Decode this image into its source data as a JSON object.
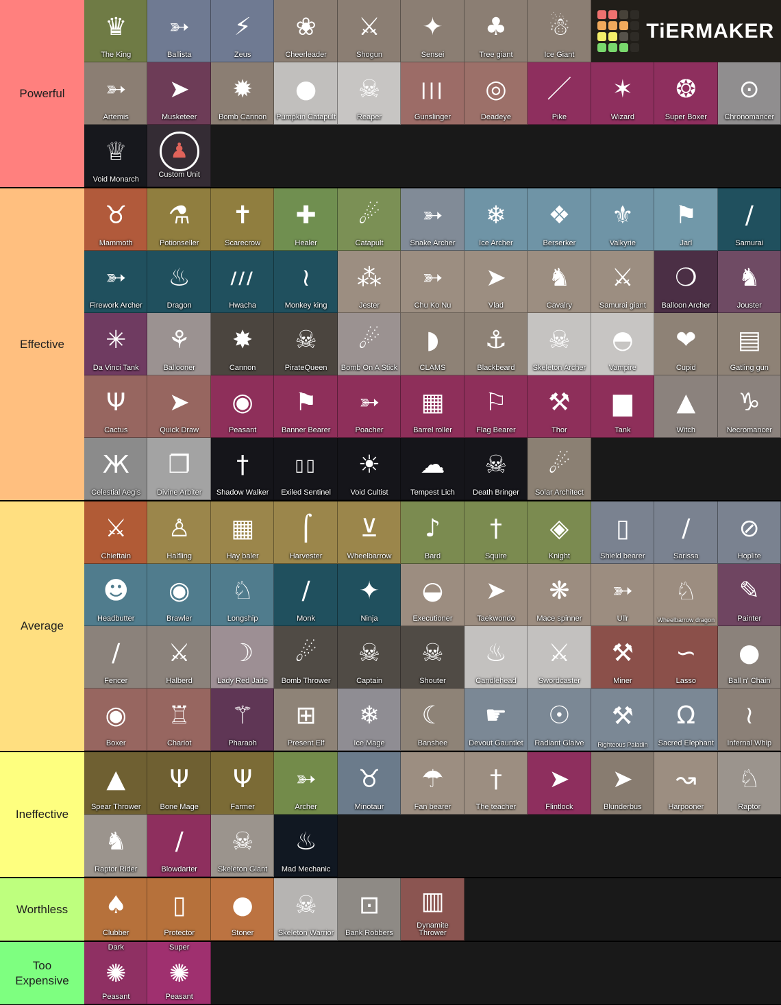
{
  "board": {
    "bg": "#131313",
    "content_bg": "#191919",
    "divider": "#000000",
    "label_text_color": "#1f1f1f"
  },
  "logo": {
    "text": "TiERMAKER",
    "bg": "#211e19",
    "grid": [
      "#ef716f",
      "#ef716f",
      "#474239",
      "#2e2b26",
      "#f0a95c",
      "#f0a95c",
      "#f0a95c",
      "#2e2b26",
      "#f3ee6a",
      "#f3ee6a",
      "#56524b",
      "#2e2b26",
      "#79d86d",
      "#79d86d",
      "#79d86d",
      "#2e2b26"
    ]
  },
  "tiers": [
    {
      "label": "Powerful",
      "color": "#ff807e",
      "rows": 3,
      "tiles": [
        {
          "l": "The King",
          "c": "#6f7b45",
          "g": "♛",
          "i": "crown-icon"
        },
        {
          "l": "Ballista",
          "c": "#6f7a92",
          "g": "➳",
          "i": "ballista-icon"
        },
        {
          "l": "Zeus",
          "c": "#6f7a92",
          "g": "⚡",
          "i": "lightning-icon"
        },
        {
          "l": "Cheerleader",
          "c": "#8b7e73",
          "g": "❀",
          "i": "pompom-icon"
        },
        {
          "l": "Shogun",
          "c": "#8b7e73",
          "g": "⚔",
          "i": "crossed-swords-icon"
        },
        {
          "l": "Sensei",
          "c": "#8b7e73",
          "g": "✦",
          "i": "shuriken-icon"
        },
        {
          "l": "Tree giant",
          "c": "#8b7e73",
          "g": "♣",
          "i": "tree-icon"
        },
        {
          "l": "Ice Giant",
          "c": "#8b7e73",
          "g": "☃",
          "i": "ice-giant-icon"
        },
        {
          "l": "Artemis",
          "c": "#8b7e73",
          "g": "➳",
          "i": "bow-arrow-icon"
        },
        {
          "l": "Musketeer",
          "c": "#6d3c57",
          "g": "➤",
          "i": "musket-icon"
        },
        {
          "l": "Bomb Cannon",
          "c": "#8b7e73",
          "g": "✹",
          "i": "bomb-blast-icon"
        },
        {
          "l": "Pumpkin Catapult",
          "c": "#c1bfbd",
          "g": "●",
          "i": "pumpkin-icon"
        },
        {
          "l": "Reaper",
          "c": "#c7c5c3",
          "g": "☠",
          "i": "reaper-hood-icon"
        },
        {
          "l": "Gunslinger",
          "c": "#9c6c67",
          "g": "|||",
          "i": "falling-bullets-icon"
        },
        {
          "l": "Deadeye",
          "c": "#9c7069",
          "g": "◎",
          "i": "target-icon"
        },
        {
          "l": "Pike",
          "c": "#8e2f5e",
          "g": "／",
          "i": "pike-icon"
        },
        {
          "l": "Wizard",
          "c": "#8e2f5e",
          "g": "✶",
          "i": "wizard-hat-icon"
        },
        {
          "l": "Super Boxer",
          "c": "#8e2f5e",
          "g": "❂",
          "i": "boxing-gloves-icon"
        },
        {
          "l": "Chronomancer",
          "c": "#908e8f",
          "g": "⊙",
          "i": "chrono-dial-icon"
        },
        {
          "l": "Void Monarch",
          "c": "#17181d",
          "g": "♕",
          "i": "void-crown-icon"
        },
        {
          "l": "Custom Unit",
          "c": "#342c34",
          "g": "♟",
          "gc": "#e0635a",
          "ring": true,
          "i": "custom-figure-icon"
        }
      ]
    },
    {
      "label": "Effective",
      "color": "#ffbf7f",
      "rows": 5,
      "tiles": [
        {
          "l": "Mammoth",
          "c": "#b15a3b",
          "g": "♉",
          "i": "mammoth-icon"
        },
        {
          "l": "Potionseller",
          "c": "#907e3f",
          "g": "⚗",
          "i": "potion-flask-icon"
        },
        {
          "l": "Scarecrow",
          "c": "#907e3f",
          "g": "✝",
          "i": "scarecrow-icon"
        },
        {
          "l": "Healer",
          "c": "#708f50",
          "g": "✚",
          "i": "healer-mitre-icon"
        },
        {
          "l": "Catapult",
          "c": "#7b9055",
          "g": "☄",
          "i": "catapult-icon"
        },
        {
          "l": "Snake Archer",
          "c": "#818b97",
          "g": "➳",
          "i": "snake-bow-icon"
        },
        {
          "l": "Ice Archer",
          "c": "#6f94a6",
          "g": "❄",
          "i": "ice-bow-icon"
        },
        {
          "l": "Berserker",
          "c": "#6f94a6",
          "g": "❖",
          "i": "berserker-face-icon"
        },
        {
          "l": "Valkyrie",
          "c": "#6f94a6",
          "g": "⚜",
          "i": "valkyrie-wings-icon"
        },
        {
          "l": "Jarl",
          "c": "#7198a9",
          "g": "⚑",
          "i": "jarl-axe-icon"
        },
        {
          "l": "Samurai",
          "c": "#20505e",
          "g": "∕",
          "i": "katana-icon"
        },
        {
          "l": "Firework Archer",
          "c": "#20505e",
          "g": "➳",
          "i": "firework-bow-icon"
        },
        {
          "l": "Dragon",
          "c": "#20505e",
          "g": "♨",
          "i": "flame-icon"
        },
        {
          "l": "Hwacha",
          "c": "#20505e",
          "g": "///",
          "i": "hwacha-arrows-icon"
        },
        {
          "l": "Monkey king",
          "c": "#20505e",
          "g": "≀",
          "i": "monkey-staff-icon"
        },
        {
          "l": "Jester",
          "c": "#9c8e81",
          "g": "⁂",
          "i": "jester-hat-icon"
        },
        {
          "l": "Chu Ko Nu",
          "c": "#9c8e81",
          "g": "➳",
          "i": "chu-ko-nu-icon"
        },
        {
          "l": "Vlad",
          "c": "#9c8e81",
          "g": "➤",
          "i": "stake-icon"
        },
        {
          "l": "Cavalry",
          "c": "#9c8e81",
          "g": "♞",
          "i": "cavalry-horse-icon"
        },
        {
          "l": "Samurai giant",
          "c": "#9c8e81",
          "g": "⚔",
          "i": "samurai-giant-icon"
        },
        {
          "l": "Balloon Archer",
          "c": "#4b2f45",
          "g": "❍",
          "i": "balloon-bow-icon"
        },
        {
          "l": "Jouster",
          "c": "#6f4b64",
          "g": "♞",
          "i": "jouster-horse-icon"
        },
        {
          "l": "Da Vinci Tank",
          "c": "#6f3b61",
          "g": "✳",
          "i": "davinci-wheel-icon"
        },
        {
          "l": "Ballooner",
          "c": "#9b9291",
          "g": "⚘",
          "i": "balloon-bouquet-icon"
        },
        {
          "l": "Cannon",
          "c": "#4b453f",
          "g": "✸",
          "i": "cannon-blast-icon"
        },
        {
          "l": "PirateQueen",
          "c": "#4b453f",
          "g": "☠",
          "i": "pirate-queen-icon"
        },
        {
          "l": "Bomb On A Stick",
          "c": "#9b9291",
          "g": "☄",
          "i": "bomb-stick-icon"
        },
        {
          "l": "CLAMS",
          "c": "#8e8276",
          "g": "◗",
          "i": "clam-shell-icon"
        },
        {
          "l": "Blackbeard",
          "c": "#8e8276",
          "g": "⚓",
          "i": "anchor-icon"
        },
        {
          "l": "Skeleton Archer",
          "c": "#c5c3c1",
          "g": "☠",
          "i": "skeleton-bow-icon"
        },
        {
          "l": "Vampire",
          "c": "#c7c5c3",
          "g": "◓",
          "i": "vampire-mask-icon"
        },
        {
          "l": "Cupid",
          "c": "#8e8276",
          "g": "❤",
          "i": "cupid-bow-icon"
        },
        {
          "l": "Gatling gun",
          "c": "#8e8276",
          "g": "▤",
          "i": "gatling-barrels-icon"
        },
        {
          "l": "Cactus",
          "c": "#976660",
          "g": "Ψ",
          "i": "cactus-icon"
        },
        {
          "l": "Quick Draw",
          "c": "#976660",
          "g": "➤",
          "i": "quick-draw-gun-icon"
        },
        {
          "l": "Peasant",
          "c": "#8e2f5a",
          "g": "◉",
          "i": "peasant-hood-icon"
        },
        {
          "l": "Banner Bearer",
          "c": "#8e2f5a",
          "g": "⚑",
          "i": "banner-pole-icon"
        },
        {
          "l": "Poacher",
          "c": "#8e2f5a",
          "g": "➳",
          "i": "poacher-bow-icon"
        },
        {
          "l": "Barrel roller",
          "c": "#8e2f5a",
          "g": "▦",
          "i": "barrel-icon"
        },
        {
          "l": "Flag Bearer",
          "c": "#8e2f5a",
          "g": "⚐",
          "i": "flag-icon"
        },
        {
          "l": "Thor",
          "c": "#8e2f5a",
          "g": "⚒",
          "i": "thor-hammer-icon"
        },
        {
          "l": "Tank",
          "c": "#8e2f5a",
          "g": "▆",
          "i": "tank-icon"
        },
        {
          "l": "Witch",
          "c": "#8b827d",
          "g": "▲",
          "i": "witch-hat-icon"
        },
        {
          "l": "Necromancer",
          "c": "#8b827d",
          "g": "♑",
          "i": "ram-skull-icon"
        },
        {
          "l": "Celestial Aegis",
          "c": "#8b8b8b",
          "g": "Ж",
          "i": "butterfly-icon"
        },
        {
          "l": "Divine Arbiter",
          "c": "#a3a3a3",
          "g": "❐",
          "i": "tome-icon"
        },
        {
          "l": "Shadow Walker",
          "c": "#15151a",
          "g": "†",
          "i": "shadow-dagger-icon"
        },
        {
          "l": "Exiled Sentinel",
          "c": "#15151a",
          "g": "▯▯",
          "i": "sentinel-feet-icon"
        },
        {
          "l": "Void Cultist",
          "c": "#15151a",
          "g": "☀",
          "i": "void-staff-icon"
        },
        {
          "l": "Tempest Lich",
          "c": "#15151a",
          "g": "☁",
          "i": "storm-cloud-icon"
        },
        {
          "l": "Death Bringer",
          "c": "#15151a",
          "g": "☠",
          "i": "horned-skull-icon"
        },
        {
          "l": "Solar Architect",
          "c": "#8b8073",
          "g": "☄",
          "i": "solar-hammer-icon"
        }
      ]
    },
    {
      "label": "Average",
      "color": "#ffdf80",
      "rows": 4,
      "tiles": [
        {
          "l": "Chieftain",
          "c": "#b15b36",
          "g": "⚔",
          "i": "crossed-axes-icon"
        },
        {
          "l": "Halfling",
          "c": "#9b864b",
          "g": "♙",
          "i": "halfling-hat-icon"
        },
        {
          "l": "Hay baler",
          "c": "#9b864b",
          "g": "▦",
          "i": "hay-bale-icon"
        },
        {
          "l": "Harvester",
          "c": "#9b864b",
          "g": "⌠",
          "i": "scythe-icon"
        },
        {
          "l": "Wheelbarrow",
          "c": "#9b864b",
          "g": "⊻",
          "i": "wheelbarrow-icon"
        },
        {
          "l": "Bard",
          "c": "#7b8b50",
          "g": "♪",
          "i": "bard-lute-icon"
        },
        {
          "l": "Squire",
          "c": "#7b8b50",
          "g": "†",
          "i": "squire-sword-icon"
        },
        {
          "l": "Knight",
          "c": "#7b8b50",
          "g": "◈",
          "i": "knight-shield-icon"
        },
        {
          "l": "Shield bearer",
          "c": "#7a8290",
          "g": "▯",
          "i": "tower-shield-icon"
        },
        {
          "l": "Sarissa",
          "c": "#7a8290",
          "g": "∕",
          "i": "sarissa-spear-icon"
        },
        {
          "l": "Hoplite",
          "c": "#7a8290",
          "g": "⊘",
          "i": "hoplite-shield-icon"
        },
        {
          "l": "Headbutter",
          "c": "#507c8d",
          "g": "☻",
          "i": "headbutt-icon"
        },
        {
          "l": "Brawler",
          "c": "#507c8d",
          "g": "◉",
          "i": "brawler-disc-icon"
        },
        {
          "l": "Longship",
          "c": "#507c8d",
          "g": "♘",
          "i": "longship-icon"
        },
        {
          "l": "Monk",
          "c": "#20505e",
          "g": "∕",
          "i": "monk-staff-icon"
        },
        {
          "l": "Ninja",
          "c": "#20505e",
          "g": "✦",
          "i": "ninja-star-icon"
        },
        {
          "l": "Executioner",
          "c": "#9c8d80",
          "g": "◒",
          "i": "executioner-hood-icon"
        },
        {
          "l": "Taekwondo",
          "c": "#9c8d80",
          "g": "➤",
          "i": "taekwondo-kick-icon"
        },
        {
          "l": "Mace spinner",
          "c": "#9c8d80",
          "g": "❋",
          "i": "spiked-maces-icon"
        },
        {
          "l": "Ullr",
          "c": "#9c8d80",
          "g": "➳",
          "i": "ullr-arrow-axe-icon"
        },
        {
          "l": "Wheelbarrow dragon",
          "c": "#9c8d80",
          "g": "♘",
          "i": "wheelbarrow-dragon-icon",
          "small": true
        },
        {
          "l": "Painter",
          "c": "#6f4561",
          "g": "✎",
          "i": "paint-brush-icon"
        },
        {
          "l": "Fencer",
          "c": "#8b827b",
          "g": "∕",
          "i": "fencer-foil-icon"
        },
        {
          "l": "Halberd",
          "c": "#8b827b",
          "g": "⚔",
          "i": "halberd-icon"
        },
        {
          "l": "Lady Red Jade",
          "c": "#9d8f94",
          "g": "☽",
          "i": "jade-sword-icon"
        },
        {
          "l": "Bomb Thrower",
          "c": "#504b45",
          "g": "☄",
          "i": "thrown-bomb-icon"
        },
        {
          "l": "Captain",
          "c": "#504b45",
          "g": "☠",
          "i": "captain-skull-icon"
        },
        {
          "l": "Shouter",
          "c": "#504b45",
          "g": "☠",
          "i": "shouter-skull-icon"
        },
        {
          "l": "Candlehead",
          "c": "#c3c1bf",
          "g": "♨",
          "i": "candle-icon"
        },
        {
          "l": "Swordcaster",
          "c": "#c3c1bf",
          "g": "⚔",
          "i": "sword-caster-icon"
        },
        {
          "l": "Miner",
          "c": "#8b504a",
          "g": "⚒",
          "i": "pickaxe-icon"
        },
        {
          "l": "Lasso",
          "c": "#8b504a",
          "g": "∽",
          "i": "lasso-rope-icon"
        },
        {
          "l": "Ball n' Chain",
          "c": "#8b827b",
          "g": "●",
          "i": "ball-chain-icon"
        },
        {
          "l": "Boxer",
          "c": "#976660",
          "g": "◉",
          "i": "boxing-glove-icon"
        },
        {
          "l": "Chariot",
          "c": "#976660",
          "g": "♖",
          "i": "chariot-icon"
        },
        {
          "l": "Pharaoh",
          "c": "#5f3655",
          "g": "⚚",
          "i": "pharaoh-staff-icon"
        },
        {
          "l": "Present Elf",
          "c": "#8e8377",
          "g": "⊞",
          "i": "present-icon"
        },
        {
          "l": "Ice Mage",
          "c": "#8f8d93",
          "g": "❄",
          "i": "ice-crystal-icon"
        },
        {
          "l": "Banshee",
          "c": "#8e8377",
          "g": "☾",
          "i": "banshee-icon"
        },
        {
          "l": "Devout Gauntlet",
          "c": "#7b8895",
          "g": "☛",
          "i": "gauntlet-arm-icon"
        },
        {
          "l": "Radiant Glaive",
          "c": "#7b8895",
          "g": "☉",
          "i": "radiant-halo-icon"
        },
        {
          "l": "Righteous Paladin",
          "c": "#7b8895",
          "g": "⚒",
          "i": "paladin-hammer-icon",
          "small": true
        },
        {
          "l": "Sacred Elephant",
          "c": "#7b8895",
          "g": "Ω",
          "i": "elephant-helm-icon"
        },
        {
          "l": "Infernal Whip",
          "c": "#8b8077",
          "g": "≀",
          "i": "spiked-whip-icon"
        }
      ]
    },
    {
      "label": "Ineffective",
      "color": "#feff7f",
      "rows": 2,
      "tiles": [
        {
          "l": "Spear Thrower",
          "c": "#6f6032",
          "g": "▲",
          "i": "spearhead-icon"
        },
        {
          "l": "Bone Mage",
          "c": "#6f6032",
          "g": "Ψ",
          "i": "antler-skull-icon"
        },
        {
          "l": "Farmer",
          "c": "#7b6b36",
          "g": "Ψ",
          "i": "trident-icon"
        },
        {
          "l": "Archer",
          "c": "#738b4a",
          "g": "➳",
          "i": "archer-bow-icon"
        },
        {
          "l": "Minotaur",
          "c": "#6b7b8b",
          "g": "♉",
          "i": "bull-skull-icon"
        },
        {
          "l": "Fan bearer",
          "c": "#9c8e81",
          "g": "☂",
          "i": "fan-balloon-icon"
        },
        {
          "l": "The teacher",
          "c": "#9c8e81",
          "g": "†",
          "i": "teacher-sword-icon"
        },
        {
          "l": "Flintlock",
          "c": "#8e2f5e",
          "g": "➤",
          "i": "flintlock-pistol-icon"
        },
        {
          "l": "Blunderbus",
          "c": "#887c70",
          "g": "➤",
          "i": "blunderbuss-icon"
        },
        {
          "l": "Harpooner",
          "c": "#9c8e81",
          "g": "↝",
          "i": "harpoon-icon"
        },
        {
          "l": "Raptor",
          "c": "#9b948d",
          "g": "♘",
          "i": "raptor-head-icon"
        },
        {
          "l": "Raptor Rider",
          "c": "#9b948d",
          "g": "♞",
          "i": "raptor-rider-icon"
        },
        {
          "l": "Blowdarter",
          "c": "#8e2f5e",
          "g": "∕",
          "i": "blowpipe-icon"
        },
        {
          "l": "Skeleton Giant",
          "c": "#9b948d",
          "g": "☠",
          "i": "giant-skull-icon"
        },
        {
          "l": "Mad Mechanic",
          "c": "#111822",
          "g": "♨",
          "i": "mech-flame-icon"
        }
      ]
    },
    {
      "label": "Worthless",
      "color": "#beff7e",
      "rows": 1,
      "tiles": [
        {
          "l": "Clubber",
          "c": "#b6713b",
          "g": "♠",
          "i": "club-icon"
        },
        {
          "l": "Protector",
          "c": "#b6713b",
          "g": "▯",
          "i": "protector-shield-icon"
        },
        {
          "l": "Stoner",
          "c": "#bc7341",
          "g": "●",
          "i": "boulder-icon"
        },
        {
          "l": "Skeleton Warrior",
          "c": "#b6b4b2",
          "g": "☠",
          "i": "skeleton-sword-icon"
        },
        {
          "l": "Bank Robbers",
          "c": "#8e8a85",
          "g": "⊡",
          "i": "bank-frame-icon"
        },
        {
          "l": "Dynamite Thrower",
          "c": "#8b5551",
          "g": "▥",
          "i": "dynamite-icon"
        }
      ]
    },
    {
      "label": "Too Expensive",
      "color": "#7eff80",
      "rows": 1,
      "tiles": [
        {
          "l": "Peasant",
          "lt": "Dark",
          "c": "#8f3063",
          "g": "✺",
          "i": "dark-hands-icon"
        },
        {
          "l": "Peasant",
          "lt": "Super",
          "c": "#9f306f",
          "g": "✺",
          "i": "super-arms-icon"
        }
      ]
    }
  ]
}
